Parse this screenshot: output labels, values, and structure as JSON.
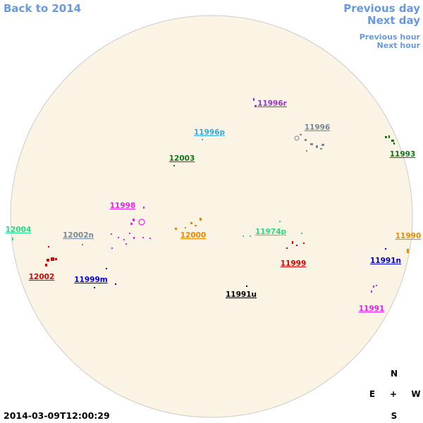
{
  "navigation": {
    "back": "Back to 2014",
    "previous_day": "Previous day",
    "next_day": "Next day",
    "previous_hour": "Previous hour",
    "next_hour": "Next hour"
  },
  "regions": [
    {
      "label": "11996r",
      "color": "#9933cc"
    },
    {
      "label": "11996p",
      "color": "#33aadd"
    },
    {
      "label": "11996",
      "color": "#778899"
    },
    {
      "label": "11993",
      "color": "#117711"
    },
    {
      "label": "12003",
      "color": "#117711"
    },
    {
      "label": "11998",
      "color": "#ee22ee"
    },
    {
      "label": "12004",
      "color": "#22dd88"
    },
    {
      "label": "12002n",
      "color": "#778899"
    },
    {
      "label": "12000",
      "color": "#ee8800"
    },
    {
      "label": "11974p",
      "color": "#22dd88"
    },
    {
      "label": "11990",
      "color": "#ee8800"
    },
    {
      "label": "11999",
      "color": "#dd0000"
    },
    {
      "label": "11991n",
      "color": "#0000cc"
    },
    {
      "label": "12002",
      "color": "#dd0000"
    },
    {
      "label": "11999m",
      "color": "#0000cc"
    },
    {
      "label": "11991u",
      "color": "#000000"
    },
    {
      "label": "11991",
      "color": "#ee22ee"
    }
  ],
  "compass": {
    "north": "N",
    "east": "E",
    "center": "+",
    "west": "W",
    "south": "S"
  },
  "timestamp": "2014-03-09T12:00:29"
}
